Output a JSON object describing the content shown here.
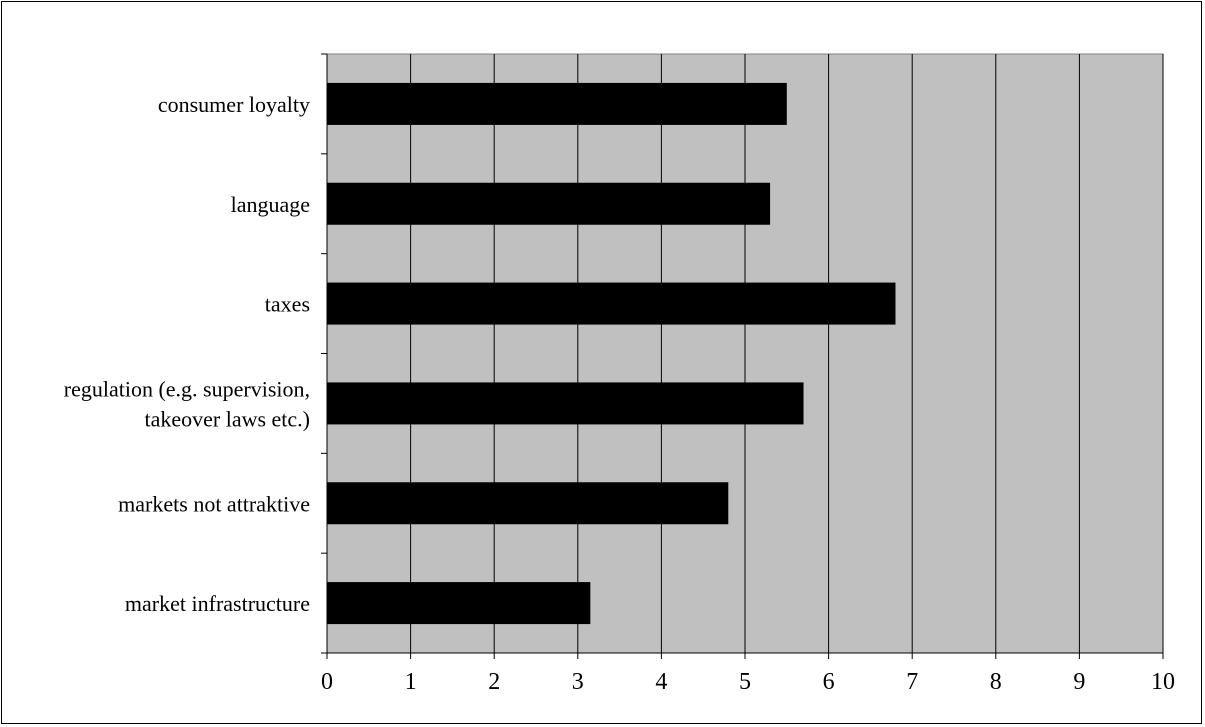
{
  "chart_data": {
    "type": "bar",
    "orientation": "horizontal",
    "categories": [
      "consumer loyalty",
      "language",
      "taxes",
      "regulation (e.g. supervision, takeover laws etc.)",
      "markets not attraktive",
      "market infrastructure"
    ],
    "category_label_lines": [
      [
        "consumer loyalty"
      ],
      [
        "language"
      ],
      [
        "taxes"
      ],
      [
        "regulation (e.g. supervision,",
        "takeover laws etc.)"
      ],
      [
        "markets not attraktive"
      ],
      [
        "market infrastructure"
      ]
    ],
    "values": [
      5.5,
      5.3,
      6.8,
      5.7,
      4.8,
      3.15
    ],
    "xlim": [
      0,
      10
    ],
    "xticks": [
      "0",
      "1",
      "2",
      "3",
      "4",
      "5",
      "6",
      "7",
      "8",
      "9",
      "10"
    ],
    "title": "",
    "xlabel": "",
    "ylabel": "",
    "grid": "vertical",
    "legend": "none",
    "colors": {
      "bar": "#000000",
      "plot_background": "#c0c0c0",
      "gridline": "#000000"
    }
  }
}
